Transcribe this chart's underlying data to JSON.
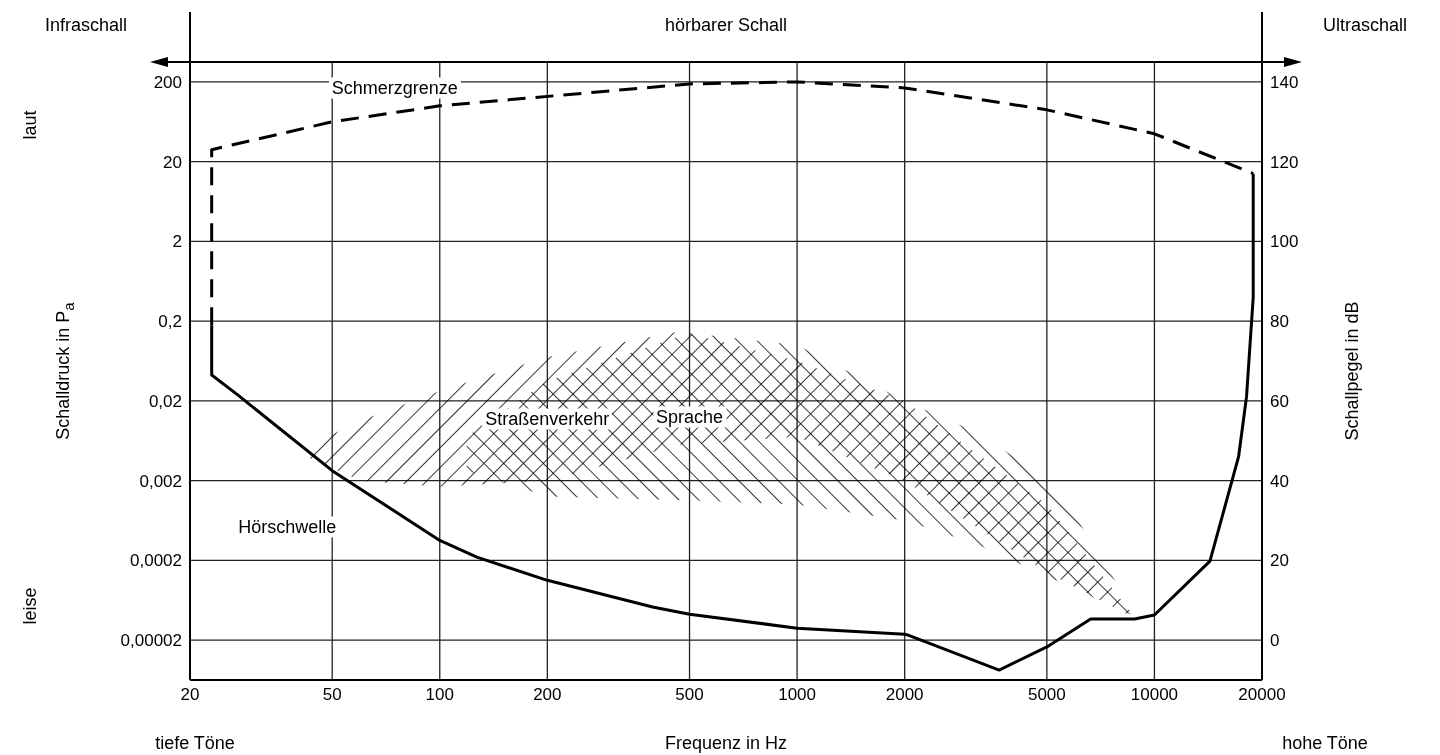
{
  "chart_data": {
    "type": "line",
    "xlabel": "Frequenz in Hz",
    "ylabel": "Schalldruck in P$_{a}$",
    "y2label": "Schallpegel in dB",
    "annotations": [
      "Infraschall",
      "hörbarer Schall",
      "Ultraschall",
      "laut",
      "leise",
      "tiefe Töne",
      "hohe Töne"
    ],
    "log": "xy",
    "grid": true,
    "xlim": [
      20,
      20000
    ],
    "xticks": [
      20,
      50,
      100,
      200,
      500,
      1000,
      2000,
      5000,
      10000,
      20000
    ],
    "ylim": [
      6.32e-06,
      356
    ],
    "yticks": [
      {
        "value": 2e-05,
        "label": "0,00002"
      },
      {
        "value": 0.0002,
        "label": "0,0002"
      },
      {
        "value": 0.002,
        "label": "0,002"
      },
      {
        "value": 0.02,
        "label": "0,02"
      },
      {
        "value": 0.2,
        "label": "0,2"
      },
      2,
      20,
      200
    ],
    "y2lim": [
      -10,
      145
    ],
    "y2ticks": [
      0,
      20,
      40,
      60,
      80,
      100,
      120,
      140
    ],
    "series": [
      {
        "name": "Straßenverkehr",
        "type": "area",
        "axis": "y2",
        "color": "#000000",
        "x": [
          42.5,
          60,
          100,
          200,
          470,
          1000,
          2000,
          5000,
          8600
        ],
        "values": [
          null,
          null,
          null,
          null,
          null,
          null,
          null,
          null,
          null
        ],
        "lower": [
          46,
          40,
          38.5,
          40,
          49,
          51,
          40,
          17,
          6
        ],
        "upper": [
          48.5,
          55,
          62.5,
          71,
          77.5,
          70,
          60,
          34,
          7
        ]
      },
      {
        "name": "Sprache",
        "type": "area",
        "axis": "y2",
        "color": "#000000",
        "x": [
          119,
          200,
          500,
          1000,
          2000,
          3200,
          5300,
          8800
        ],
        "values": [
          null,
          null,
          null,
          null,
          null,
          null,
          null,
          null
        ],
        "lower": [
          42.5,
          36,
          35,
          34,
          30,
          24,
          15,
          6
        ],
        "upper": [
          51,
          65,
          77,
          74,
          60,
          52,
          39,
          7
        ]
      },
      {
        "name": "Hörschwelle",
        "axis": "y2",
        "color": "#000000",
        "line_style": "solid",
        "x": [
          23,
          23,
          27.2,
          50,
          100,
          127,
          200,
          394,
          500,
          1000,
          2000,
          2036,
          3677,
          5000,
          6630,
          8800,
          10000,
          14300,
          17200,
          18100,
          18900,
          18900
        ],
        "values": [
          79,
          66.5,
          61.5,
          42.5,
          25,
          20.8,
          15,
          8.3,
          6.5,
          3,
          1.5,
          1.3,
          -7.5,
          -1.7,
          5.3,
          5.3,
          6.3,
          19.8,
          46,
          61,
          86,
          117
        ]
      },
      {
        "name": "Schmerzgrenze",
        "axis": "y2",
        "color": "#000000",
        "line_style": "dashed",
        "x": [
          23,
          23,
          50,
          100,
          500,
          1000,
          2000,
          5000,
          10000,
          18900
        ],
        "values": [
          79,
          123,
          130,
          134,
          139.5,
          140,
          138.5,
          133,
          127,
          117
        ]
      }
    ]
  }
}
